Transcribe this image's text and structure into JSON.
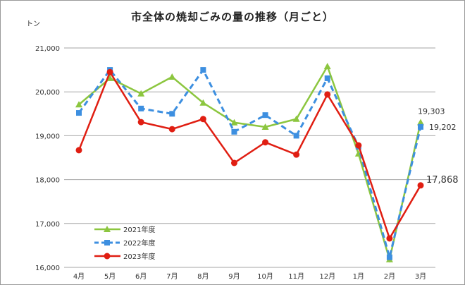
{
  "chart_data": {
    "type": "line",
    "title": "市全体の焼却ごみの量の推移（月ごと）",
    "ylabel": "トン",
    "categories": [
      "4月",
      "5月",
      "6月",
      "7月",
      "8月",
      "9月",
      "10月",
      "11月",
      "12月",
      "1月",
      "2月",
      "3月"
    ],
    "ylim": [
      16000,
      21000
    ],
    "yticks": [
      "16,000",
      "17,000",
      "18,000",
      "19,000",
      "20,000",
      "21,000"
    ],
    "grid": true,
    "legend": "bottom-left",
    "series": [
      {
        "name": "2021年度",
        "color": "#8cc63f",
        "marker": "triangle",
        "dash": false,
        "values": [
          19710,
          20310,
          19960,
          20340,
          19750,
          19300,
          19200,
          19380,
          20580,
          18590,
          16180,
          19303
        ],
        "end_label": "19,303"
      },
      {
        "name": "2022年度",
        "color": "#3d8fe0",
        "marker": "square",
        "dash": true,
        "values": [
          19520,
          20500,
          19620,
          19500,
          20500,
          19090,
          19470,
          19000,
          20310,
          18750,
          16230,
          19202
        ],
        "end_label": "19,202"
      },
      {
        "name": "2023年度",
        "color": "#e01e12",
        "marker": "circle",
        "dash": false,
        "values": [
          18670,
          20450,
          19310,
          19150,
          19380,
          18380,
          18850,
          18570,
          19940,
          18780,
          16660,
          17868
        ],
        "end_label": "17,868"
      }
    ]
  }
}
